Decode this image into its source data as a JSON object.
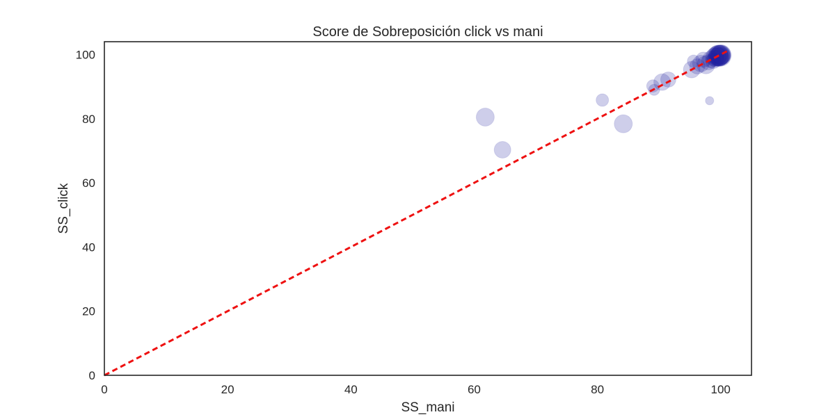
{
  "chart_data": {
    "type": "scatter",
    "title": "Score de Sobreposición click vs mani",
    "xlabel": "SS_mani",
    "ylabel": "SS_click",
    "xlim": [
      0,
      105
    ],
    "ylim": [
      0,
      104
    ],
    "xticks": [
      "0",
      "20",
      "40",
      "60",
      "80",
      "100"
    ],
    "yticks": [
      "0",
      "20",
      "40",
      "60",
      "80",
      "100"
    ],
    "xtick_values": [
      0,
      20,
      40,
      60,
      80,
      100
    ],
    "ytick_values": [
      0,
      20,
      40,
      60,
      80,
      100
    ],
    "grid": false,
    "point_color": "#1f1fa0",
    "point_alpha": 0.22,
    "reference_line": {
      "from": [
        0,
        0
      ],
      "to": [
        101,
        101
      ],
      "color": "#ee1111",
      "style": "dashed"
    },
    "points": [
      {
        "x": 61.8,
        "y": 80.5,
        "size": 13
      },
      {
        "x": 64.6,
        "y": 70.3,
        "size": 12
      },
      {
        "x": 80.8,
        "y": 85.8,
        "size": 9
      },
      {
        "x": 84.2,
        "y": 78.4,
        "size": 13
      },
      {
        "x": 89.0,
        "y": 90.2,
        "size": 9
      },
      {
        "x": 89.2,
        "y": 89.0,
        "size": 8
      },
      {
        "x": 90.5,
        "y": 91.4,
        "size": 12
      },
      {
        "x": 91.5,
        "y": 92.2,
        "size": 11
      },
      {
        "x": 95.3,
        "y": 95.3,
        "size": 12
      },
      {
        "x": 95.6,
        "y": 97.9,
        "size": 9
      },
      {
        "x": 96.2,
        "y": 96.3,
        "size": 11
      },
      {
        "x": 96.8,
        "y": 97.2,
        "size": 12
      },
      {
        "x": 97.2,
        "y": 98.4,
        "size": 11
      },
      {
        "x": 97.6,
        "y": 96.8,
        "size": 13
      },
      {
        "x": 98.0,
        "y": 97.6,
        "size": 11
      },
      {
        "x": 98.2,
        "y": 85.6,
        "size": 6
      },
      {
        "x": 98.4,
        "y": 98.5,
        "size": 12
      },
      {
        "x": 98.8,
        "y": 98.0,
        "size": 11
      },
      {
        "x": 99.0,
        "y": 99.2,
        "size": 13
      },
      {
        "x": 99.2,
        "y": 98.7,
        "size": 12
      },
      {
        "x": 99.3,
        "y": 99.5,
        "size": 14
      },
      {
        "x": 99.5,
        "y": 99.3,
        "size": 13
      },
      {
        "x": 99.6,
        "y": 99.6,
        "size": 15
      },
      {
        "x": 99.7,
        "y": 99.4,
        "size": 14
      },
      {
        "x": 99.8,
        "y": 99.7,
        "size": 15
      },
      {
        "x": 99.9,
        "y": 99.8,
        "size": 14
      },
      {
        "x": 100.0,
        "y": 99.6,
        "size": 15
      },
      {
        "x": 100.0,
        "y": 99.9,
        "size": 14
      },
      {
        "x": 100.1,
        "y": 99.5,
        "size": 13
      },
      {
        "x": 100.1,
        "y": 100.0,
        "size": 14
      },
      {
        "x": 99.8,
        "y": 99.2,
        "size": 13
      },
      {
        "x": 99.6,
        "y": 99.9,
        "size": 14
      }
    ]
  }
}
